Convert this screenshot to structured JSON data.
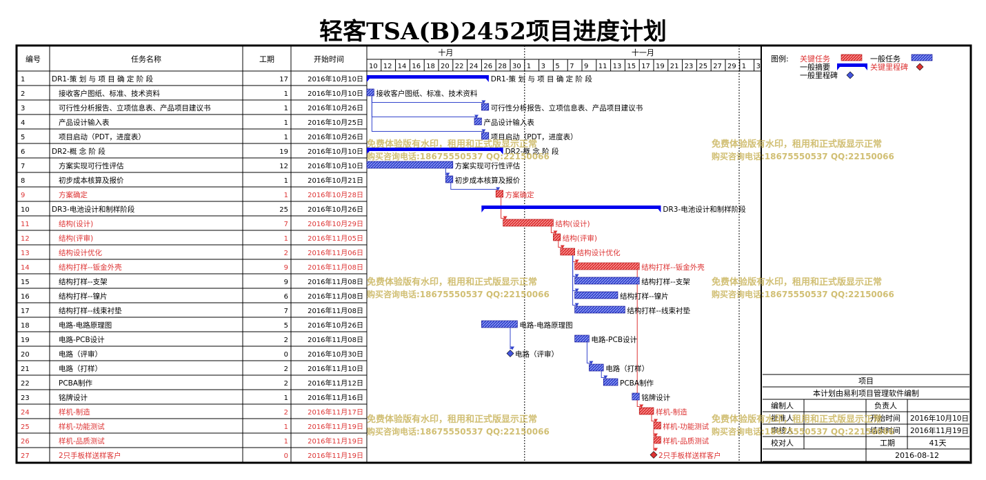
{
  "title": "轻客TSA(B)2452项目进度计划",
  "columns": {
    "id": "编号",
    "name": "任务名称",
    "duration": "工期",
    "start": "开始时间"
  },
  "months": [
    {
      "label": "十月",
      "start": "2016-10-10",
      "end": "2016-10-31"
    },
    {
      "label": "十一月",
      "start": "2016-11-01",
      "end": "2016-12-03"
    }
  ],
  "day_ticks": [
    "10",
    "12",
    "14",
    "16",
    "18",
    "20",
    "22",
    "24",
    "26",
    "28",
    "30",
    "1",
    "3",
    "5",
    "7",
    "9",
    "11",
    "13",
    "15",
    "17",
    "19",
    "21",
    "23",
    "25",
    "27",
    "29",
    "1",
    "3"
  ],
  "chart_data": {
    "type": "gantt",
    "axis_start": "2016-10-10",
    "axis_end": "2016-12-04",
    "tasks": [
      {
        "id": "1",
        "name": "DR1-策 划 与 项 目 确 定 阶 段",
        "duration": 17,
        "start": "2016-10-10",
        "start_label": "2016年10月10日",
        "kind": "summary",
        "critical": false
      },
      {
        "id": "2",
        "name": "接收客户图纸、标准、技术资料",
        "duration": 1,
        "start": "2016-10-10",
        "start_label": "2016年10月10日",
        "kind": "task",
        "critical": false
      },
      {
        "id": "3",
        "name": "可行性分析报告、立项信息表、产品项目建议书",
        "duration": 1,
        "start": "2016-10-26",
        "start_label": "2016年10月26日",
        "kind": "task",
        "critical": false
      },
      {
        "id": "4",
        "name": "产品设计输入表",
        "duration": 1,
        "start": "2016-10-25",
        "start_label": "2016年10月25日",
        "kind": "task",
        "critical": false
      },
      {
        "id": "5",
        "name": "项目启动（PDT，进度表）",
        "duration": 1,
        "start": "2016-10-26",
        "start_label": "2016年10月26日",
        "kind": "task",
        "critical": false
      },
      {
        "id": "6",
        "name": "DR2-概 念 阶 段",
        "duration": 19,
        "start": "2016-10-10",
        "start_label": "2016年10月10日",
        "kind": "summary",
        "critical": false
      },
      {
        "id": "7",
        "name": "方案实现可行性评估",
        "duration": 12,
        "start": "2016-10-10",
        "start_label": "2016年10月10日",
        "kind": "task",
        "critical": false
      },
      {
        "id": "8",
        "name": "初步成本核算及报价",
        "duration": 1,
        "start": "2016-10-21",
        "start_label": "2016年10月21日",
        "kind": "task",
        "critical": false
      },
      {
        "id": "9",
        "name": "方案确定",
        "duration": 1,
        "start": "2016-10-28",
        "start_label": "2016年10月28日",
        "kind": "task",
        "critical": true
      },
      {
        "id": "10",
        "name": "DR3-电池设计和制样阶段",
        "duration": 25,
        "start": "2016-10-26",
        "start_label": "2016年10月26日",
        "kind": "summary",
        "critical": false
      },
      {
        "id": "11",
        "name": "结构(设计)",
        "duration": 7,
        "start": "2016-10-29",
        "start_label": "2016年10月29日",
        "kind": "task",
        "critical": true
      },
      {
        "id": "12",
        "name": "结构(评审)",
        "duration": 1,
        "start": "2016-11-05",
        "start_label": "2016年11月05日",
        "kind": "task",
        "critical": true
      },
      {
        "id": "13",
        "name": "结构设计优化",
        "duration": 2,
        "start": "2016-11-06",
        "start_label": "2016年11月06日",
        "kind": "task",
        "critical": true
      },
      {
        "id": "14",
        "name": "结构打样--钣金外壳",
        "duration": 9,
        "start": "2016-11-08",
        "start_label": "2016年11月08日",
        "kind": "task",
        "critical": true
      },
      {
        "id": "15",
        "name": "结构打样--支架",
        "duration": 9,
        "start": "2016-11-08",
        "start_label": "2016年11月08日",
        "kind": "task",
        "critical": false
      },
      {
        "id": "16",
        "name": "结构打样--镍片",
        "duration": 6,
        "start": "2016-11-08",
        "start_label": "2016年11月08日",
        "kind": "task",
        "critical": false
      },
      {
        "id": "17",
        "name": "结构打样--线束衬垫",
        "duration": 7,
        "start": "2016-11-08",
        "start_label": "2016年11月08日",
        "kind": "task",
        "critical": false
      },
      {
        "id": "18",
        "name": "电路-电路原理图",
        "duration": 5,
        "start": "2016-10-26",
        "start_label": "2016年10月26日",
        "kind": "task",
        "critical": false
      },
      {
        "id": "19",
        "name": "电路-PCB设计",
        "duration": 2,
        "start": "2016-11-08",
        "start_label": "2016年11月08日",
        "kind": "task",
        "critical": false
      },
      {
        "id": "20",
        "name": "电路（评审）",
        "duration": 0,
        "start": "2016-10-30",
        "start_label": "2016年10月30日",
        "kind": "milestone",
        "critical": false
      },
      {
        "id": "21",
        "name": "电路（打样）",
        "duration": 2,
        "start": "2016-11-10",
        "start_label": "2016年11月10日",
        "kind": "task",
        "critical": false
      },
      {
        "id": "22",
        "name": "PCBA制作",
        "duration": 2,
        "start": "2016-11-12",
        "start_label": "2016年11月12日",
        "kind": "task",
        "critical": false
      },
      {
        "id": "23",
        "name": "铭牌设计",
        "duration": 1,
        "start": "2016-11-16",
        "start_label": "2016年11月16日",
        "kind": "task",
        "critical": false
      },
      {
        "id": "24",
        "name": "样机-制造",
        "duration": 2,
        "start": "2016-11-17",
        "start_label": "2016年11月17日",
        "kind": "task",
        "critical": true
      },
      {
        "id": "25",
        "name": "样机-功能测试",
        "duration": 1,
        "start": "2016-11-19",
        "start_label": "2016年11月19日",
        "kind": "task",
        "critical": true
      },
      {
        "id": "26",
        "name": "样机-品质测试",
        "duration": 1,
        "start": "2016-11-19",
        "start_label": "2016年11月19日",
        "kind": "task",
        "critical": true
      },
      {
        "id": "27",
        "name": "2只手板样送样客户",
        "duration": 0,
        "start": "2016-11-19",
        "start_label": "2016年11月19日",
        "kind": "milestone",
        "critical": true
      }
    ],
    "links": [
      [
        2,
        3
      ],
      [
        2,
        4
      ],
      [
        2,
        5
      ],
      [
        7,
        8
      ],
      [
        8,
        9
      ],
      [
        9,
        11
      ],
      [
        11,
        12
      ],
      [
        12,
        13
      ],
      [
        13,
        14
      ],
      [
        13,
        15
      ],
      [
        13,
        16
      ],
      [
        13,
        17
      ],
      [
        18,
        20
      ],
      [
        19,
        21
      ],
      [
        21,
        22
      ],
      [
        14,
        24
      ],
      [
        24,
        25
      ],
      [
        25,
        26
      ],
      [
        26,
        27
      ]
    ]
  },
  "legend": {
    "title": "图例:",
    "critical_task": "关键任务",
    "normal_task": "一般任务",
    "summary": "一般摘要",
    "critical_milestone": "关键里程碑",
    "normal_milestone": "一般里程碑"
  },
  "info": {
    "project": "项目",
    "subtitle": "本计划由易利项目管理软件编制",
    "prepared_by": "编制人",
    "owner": "负责人",
    "approver": "批准人",
    "start_time": "开始时间",
    "start_value": "2016年10月10日",
    "reviewer": "审核人",
    "end_time": "结束时间",
    "end_value": "2016年11月19日",
    "checker": "校对人",
    "duration_label": "工期",
    "duration_value": "41天",
    "date": "2016-08-12"
  },
  "watermark": {
    "line1": "免费体验版有水印，租用和正式版显示正常",
    "line2": "购买咨询电话:18675550537 QQ:22150066"
  },
  "colors": {
    "critical": "#dd3333",
    "normal": "#3344cc",
    "summary": "#0000ee",
    "watermark": "#c9b45c"
  }
}
